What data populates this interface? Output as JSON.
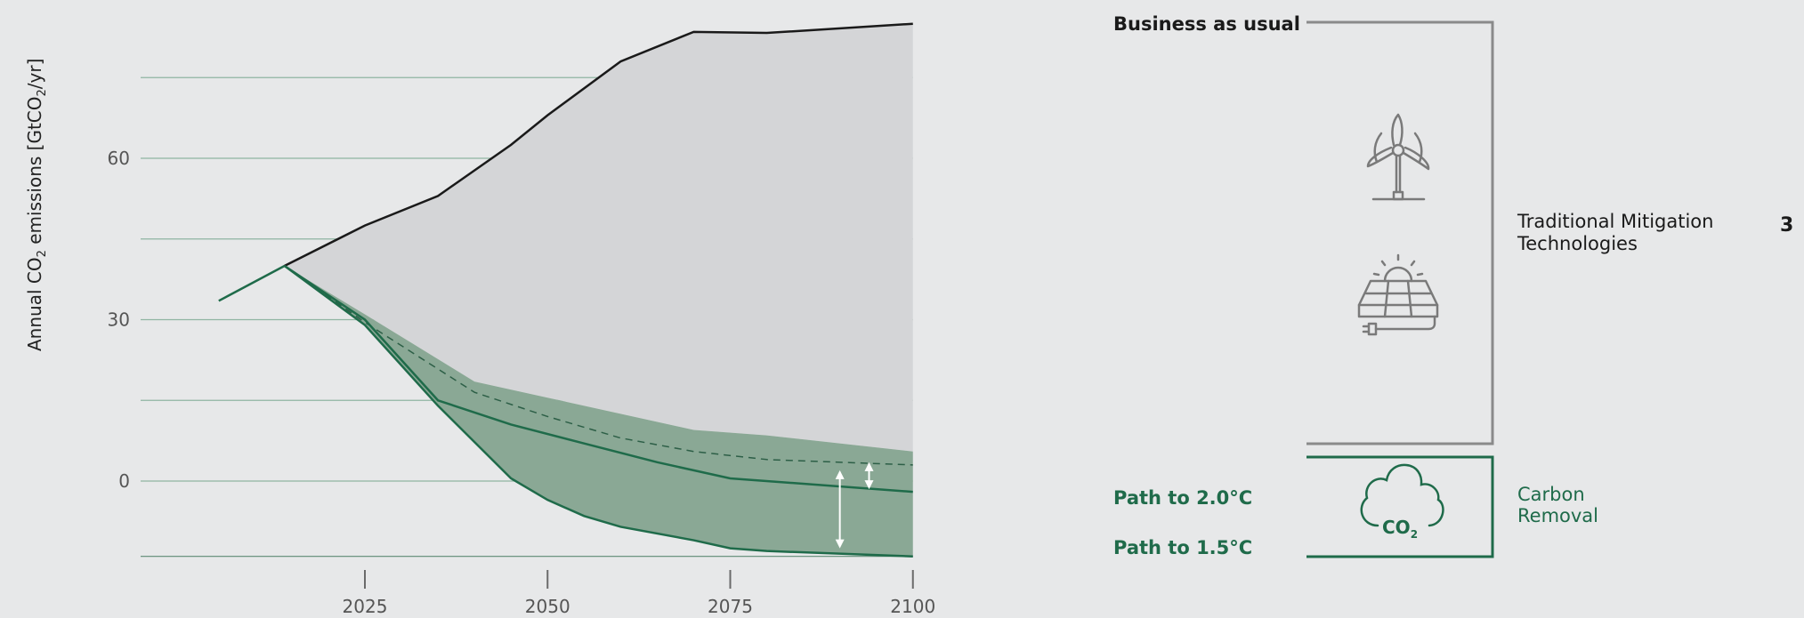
{
  "chart_data": {
    "type": "area",
    "title": "",
    "ylabel": "Annual CO",
    "ylabel_sub": "2",
    "ylabel_rest": " emissions [GtCO",
    "ylabel_sub2": "2",
    "ylabel_end": "/yr]",
    "ylim": [
      -14,
      90
    ],
    "xlim": [
      2002,
      2100
    ],
    "x_ticks": [
      2025,
      2050,
      2075,
      2100
    ],
    "x_tick_labels": [
      "2025",
      "2050",
      "2075",
      "2100"
    ],
    "y_ticks": [
      0,
      30,
      60
    ],
    "y_tick_labels": [
      "0",
      "30",
      "60"
    ],
    "gridlines": [
      -14,
      0,
      15,
      30,
      45,
      60,
      75
    ],
    "historical": {
      "x": [
        2005,
        2014
      ],
      "y": [
        33.5,
        40
      ]
    },
    "series": [
      {
        "name": "Business as usual",
        "x": [
          2014,
          2025,
          2035,
          2045,
          2050,
          2060,
          2070,
          2080,
          2100
        ],
        "y": [
          40,
          47.5,
          53,
          62.5,
          68,
          78,
          83.5,
          83.3,
          85
        ]
      },
      {
        "x": [
          2014,
          2025,
          2040,
          2050,
          2060,
          2070,
          2080,
          2100
        ],
        "y": [
          40,
          31,
          18.5,
          15.5,
          12.5,
          9.5,
          8.5,
          5.5
        ]
      },
      {
        "x": [
          2014,
          2025,
          2040,
          2050,
          2060,
          2070,
          2080,
          2100
        ],
        "y": [
          40,
          29.5,
          16.5,
          12,
          8,
          5.5,
          4,
          3
        ]
      },
      {
        "name": "Path to 2.0°C",
        "x": [
          2014,
          2025,
          2035,
          2045,
          2055,
          2065,
          2075,
          2100
        ],
        "y": [
          40,
          30,
          15,
          10.5,
          7,
          3.5,
          0.5,
          -2
        ]
      },
      {
        "name": "Path to 1.5°C",
        "x": [
          2014,
          2025,
          2035,
          2045,
          2050,
          2055,
          2060,
          2070,
          2075,
          2080,
          2100
        ],
        "y": [
          40,
          29,
          14,
          0.5,
          -3.5,
          -6.5,
          -8.5,
          -11,
          -12.5,
          -13,
          -14
        ]
      }
    ],
    "legend_labels": {
      "bau": "Business as usual",
      "p20": "Path to 2.0°C",
      "p15": "Path to 1.5°C"
    }
  },
  "side": {
    "mitigation_line1": "Traditional Mitigation",
    "mitigation_line2": "Technologies",
    "removal_line1": "Carbon",
    "removal_line2": "Removal",
    "co2_text": "CO",
    "co2_sub": "2",
    "page_number": "3"
  },
  "colors": {
    "background": "#e7e8e9",
    "bau_fill": "#d4d5d7",
    "green_fill": "#8aa895",
    "green_line": "#1f6b4a",
    "bau_line": "#1a1a1a",
    "grid": "#8fb5a2",
    "bracket_gray": "#8a8a8a"
  },
  "icons": [
    "wind-turbine-icon",
    "solar-panel-icon",
    "co2-cloud-icon"
  ]
}
